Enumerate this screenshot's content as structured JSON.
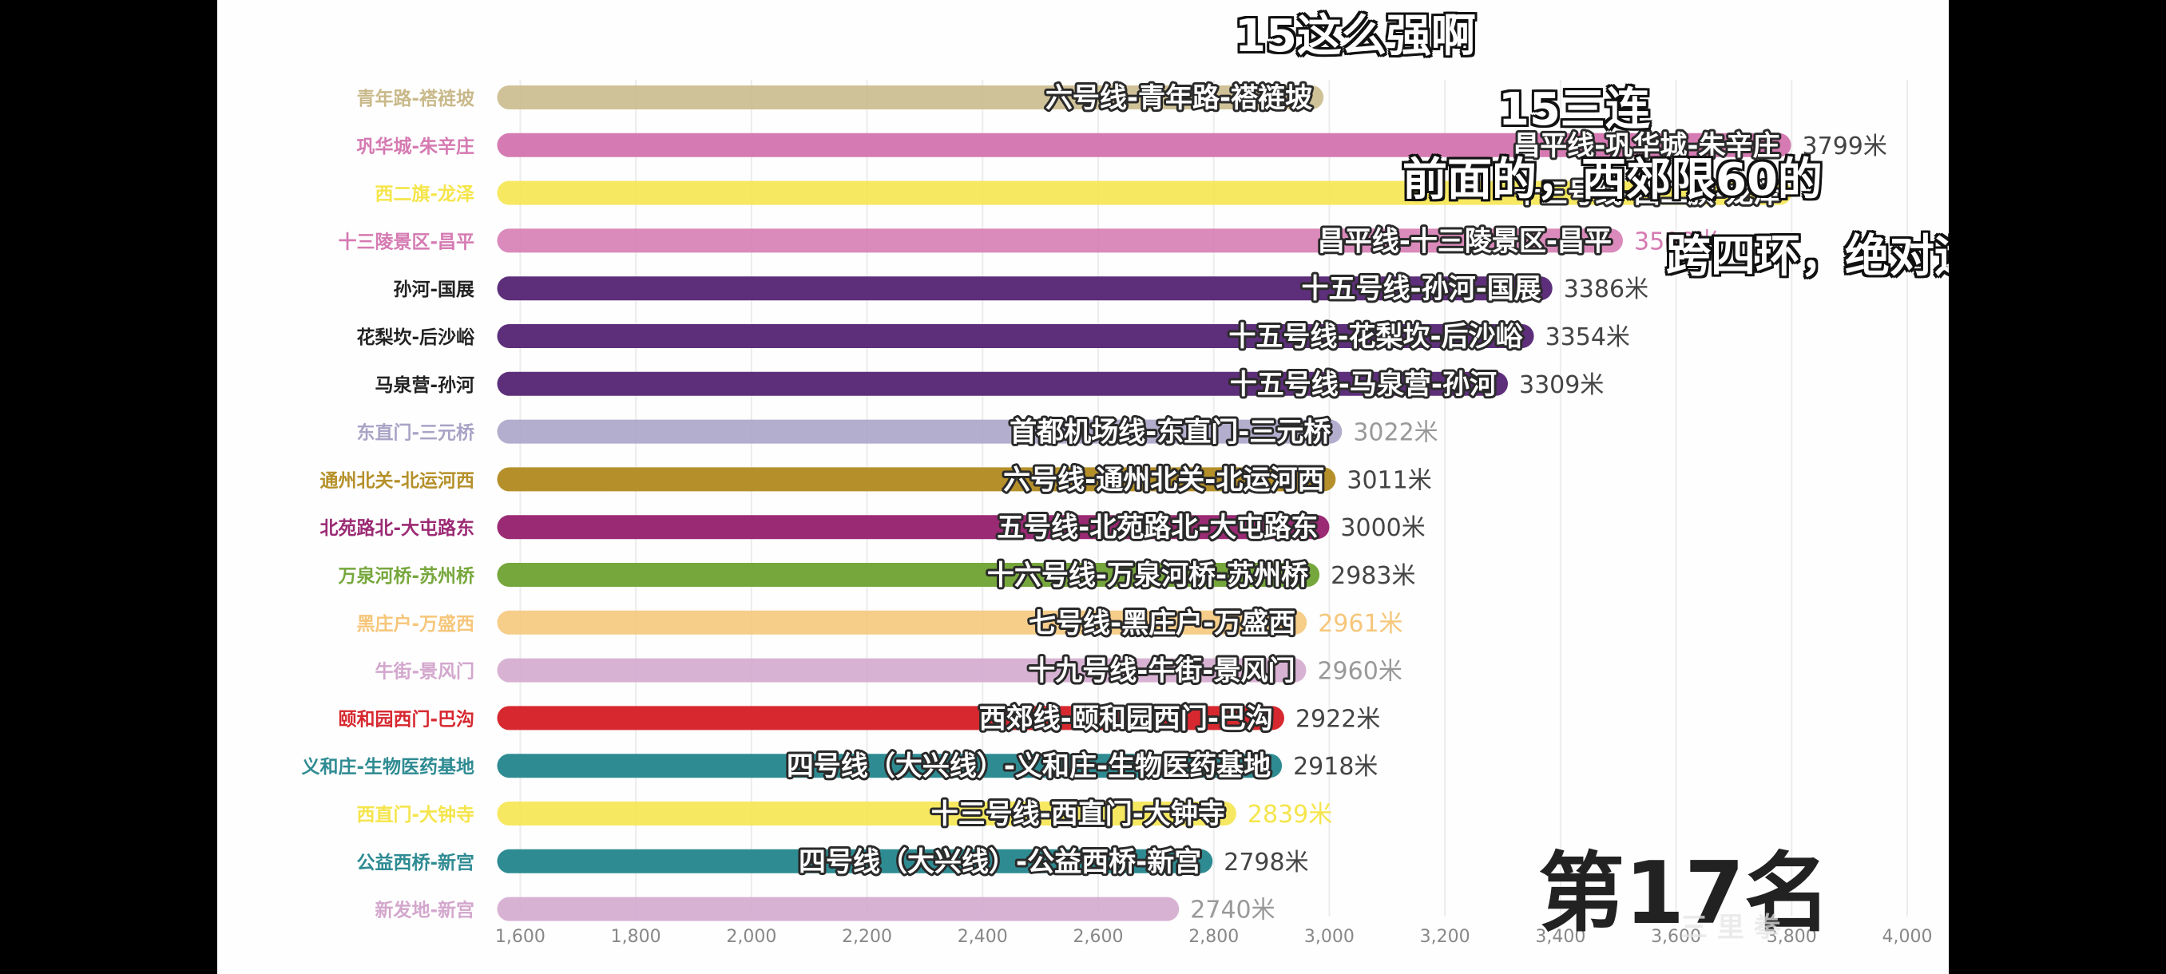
{
  "chart_data": {
    "type": "bar",
    "orientation": "horizontal",
    "unit": "米",
    "xlim": [
      1540,
      4000
    ],
    "xticks": [
      1600,
      1800,
      2000,
      2200,
      2400,
      2600,
      2800,
      3000,
      3200,
      3400,
      3600,
      3800,
      4000
    ],
    "xtick_labels": [
      "1,600",
      "1,800",
      "2,000",
      "2,200",
      "2,400",
      "2,600",
      "2,800",
      "3,000",
      "3,200",
      "3,400",
      "3,600",
      "3,800",
      "4,000"
    ],
    "bars": [
      {
        "category": "青年路-褡裢坡",
        "bar_label": "六号线-青年路-褡裢坡",
        "value": 2990,
        "value_label": "",
        "color": "#c9b98a",
        "fading": true
      },
      {
        "category": "巩华城-朱辛庄",
        "bar_label": "昌平线-巩华城-朱辛庄",
        "value": 3799,
        "value_label": "3799米",
        "color": "#d57ab2",
        "fading": false
      },
      {
        "category": "西二旗-龙泽",
        "bar_label": "十三号线-西二旗-龙泽",
        "value": 3800,
        "value_label": "",
        "color": "#f5e54b",
        "fading": true
      },
      {
        "category": "十三陵景区-昌平",
        "bar_label": "昌平线-十三陵景区-昌平",
        "value": 3508,
        "value_label": "3508米",
        "color": "#d57ab2",
        "fading": true
      },
      {
        "category": "孙河-国展",
        "bar_label": "十五号线-孙河-国展",
        "value": 3386,
        "value_label": "3386米",
        "color": "#5d2f7a",
        "fading": false
      },
      {
        "category": "花梨坎-后沙峪",
        "bar_label": "十五号线-花梨坎-后沙峪",
        "value": 3354,
        "value_label": "3354米",
        "color": "#5d2f7a",
        "fading": false
      },
      {
        "category": "马泉营-孙河",
        "bar_label": "十五号线-马泉营-孙河",
        "value": 3309,
        "value_label": "3309米",
        "color": "#5d2f7a",
        "fading": false
      },
      {
        "category": "东直门-三元桥",
        "bar_label": "首都机场线-东直门-三元桥",
        "value": 3022,
        "value_label": "3022米",
        "color": "#a9a3c6",
        "fading": true
      },
      {
        "category": "通州北关-北运河西",
        "bar_label": "六号线-通州北关-北运河西",
        "value": 3011,
        "value_label": "3011米",
        "color": "#b5902a",
        "fading": false
      },
      {
        "category": "北苑路北-大屯路东",
        "bar_label": "五号线-北苑路北-大屯路东",
        "value": 3000,
        "value_label": "3000米",
        "color": "#9b2a74",
        "fading": false
      },
      {
        "category": "万泉河桥-苏州桥",
        "bar_label": "十六号线-万泉河桥-苏州桥",
        "value": 2983,
        "value_label": "2983米",
        "color": "#76a73c",
        "fading": false
      },
      {
        "category": "黑庄户-万盛西",
        "bar_label": "七号线-黑庄户-万盛西",
        "value": 2961,
        "value_label": "2961米",
        "color": "#f6c67a",
        "fading": true
      },
      {
        "category": "牛街-景风门",
        "bar_label": "十九号线-牛街-景风门",
        "value": 2960,
        "value_label": "2960米",
        "color": "#d3a7cd",
        "fading": true
      },
      {
        "category": "颐和园西门-巴沟",
        "bar_label": "西郊线-颐和园西门-巴沟",
        "value": 2922,
        "value_label": "2922米",
        "color": "#d7282f",
        "fading": false
      },
      {
        "category": "义和庄-生物医药基地",
        "bar_label": "四号线（大兴线）-义和庄-生物医药基地",
        "value": 2918,
        "value_label": "2918米",
        "color": "#2e8b92",
        "fading": false
      },
      {
        "category": "西直门-大钟寺",
        "bar_label": "十三号线-西直门-大钟寺",
        "value": 2839,
        "value_label": "2839米",
        "color": "#f5e54b",
        "fading": true
      },
      {
        "category": "公益西桥-新宫",
        "bar_label": "四号线（大兴线）-公益西桥-新宫",
        "value": 2798,
        "value_label": "2798米",
        "color": "#2e8b92",
        "fading": false
      },
      {
        "category": "新发地-新宫",
        "bar_label": "",
        "value": 2740,
        "value_label": "2740米",
        "color": "#d3a7cd",
        "fading": true
      }
    ]
  },
  "overlays": {
    "top_caption": "15这么强啊",
    "caption_2": "15三连",
    "caption_3": "前面的，西郊限60的",
    "caption_4": "跨四环，绝对远",
    "rank_label": "第17名",
    "watermark": "三 里 拳"
  }
}
